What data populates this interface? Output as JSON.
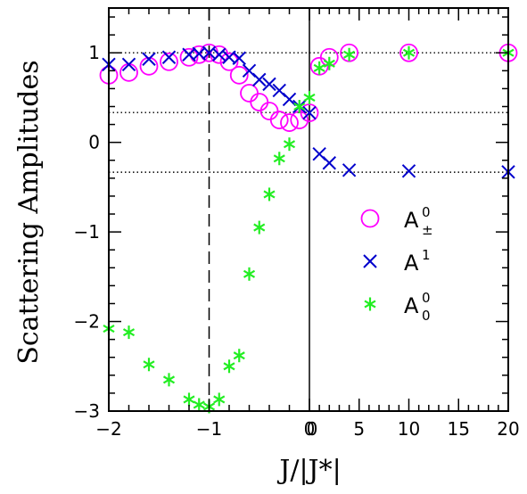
{
  "chart_data": {
    "type": "scatter",
    "ylabel": "Scattering Amplitudes",
    "xlabel": "J/|J*|",
    "ylim": [
      -3,
      1.5
    ],
    "x_ticks_left": [
      {
        "value": -2,
        "label": "−2"
      },
      {
        "value": -1,
        "label": "−1"
      },
      {
        "value": 0,
        "label": "0"
      }
    ],
    "x_ticks_right": [
      {
        "value": 0,
        "label": "0"
      },
      {
        "value": 5,
        "label": "5"
      },
      {
        "value": 10,
        "label": "10"
      },
      {
        "value": 15,
        "label": "15"
      },
      {
        "value": 20,
        "label": "20"
      }
    ],
    "y_ticks": [
      {
        "value": 1,
        "label": "1"
      },
      {
        "value": 0,
        "label": "0"
      },
      {
        "value": -1,
        "label": "−1"
      },
      {
        "value": -2,
        "label": "−2"
      },
      {
        "value": -3,
        "label": "−3"
      }
    ],
    "axis_break": "x = 0: linear scale −2…0 on the left, 0…20 on the right",
    "reference_lines": {
      "horizontal_dotted": [
        1,
        0.333,
        -0.333
      ],
      "vertical_dashed": -1,
      "vertical_solid": 0
    },
    "legend_position": "right",
    "series": [
      {
        "name": "A",
        "sup": "0",
        "sub": "±",
        "marker": "circle",
        "color": "#ff00ff",
        "points": [
          [
            -2.0,
            0.75
          ],
          [
            -1.8,
            0.78
          ],
          [
            -1.6,
            0.85
          ],
          [
            -1.4,
            0.9
          ],
          [
            -1.2,
            0.95
          ],
          [
            -1.1,
            0.98
          ],
          [
            -1.0,
            1.0
          ],
          [
            -0.9,
            0.98
          ],
          [
            -0.8,
            0.9
          ],
          [
            -0.7,
            0.75
          ],
          [
            -0.6,
            0.55
          ],
          [
            -0.5,
            0.45
          ],
          [
            -0.4,
            0.35
          ],
          [
            -0.3,
            0.25
          ],
          [
            -0.2,
            0.22
          ],
          [
            -0.1,
            0.25
          ],
          [
            0.0,
            0.33
          ],
          [
            1.0,
            0.85
          ],
          [
            2.0,
            0.95
          ],
          [
            4.0,
            1.0
          ],
          [
            10.0,
            1.0
          ],
          [
            20.0,
            1.0
          ]
        ]
      },
      {
        "name": "A",
        "sup": "1",
        "sub": "",
        "marker": "cross",
        "color": "#0000cc",
        "points": [
          [
            -2.0,
            0.87
          ],
          [
            -1.8,
            0.87
          ],
          [
            -1.6,
            0.93
          ],
          [
            -1.4,
            0.95
          ],
          [
            -1.2,
            0.98
          ],
          [
            -1.1,
            0.99
          ],
          [
            -1.0,
            1.0
          ],
          [
            -0.9,
            0.98
          ],
          [
            -0.8,
            0.95
          ],
          [
            -0.7,
            0.94
          ],
          [
            -0.6,
            0.8
          ],
          [
            -0.5,
            0.7
          ],
          [
            -0.4,
            0.65
          ],
          [
            -0.3,
            0.58
          ],
          [
            -0.2,
            0.48
          ],
          [
            -0.1,
            0.4
          ],
          [
            0.0,
            0.33
          ],
          [
            1.0,
            -0.13
          ],
          [
            2.0,
            -0.23
          ],
          [
            4.0,
            -0.31
          ],
          [
            10.0,
            -0.32
          ],
          [
            20.0,
            -0.33
          ]
        ]
      },
      {
        "name": "A",
        "sup": "0",
        "sub": "0",
        "marker": "asterisk",
        "color": "#22ee22",
        "points": [
          [
            -2.0,
            -2.08
          ],
          [
            -1.8,
            -2.12
          ],
          [
            -1.6,
            -2.48
          ],
          [
            -1.4,
            -2.65
          ],
          [
            -1.2,
            -2.87
          ],
          [
            -1.1,
            -2.93
          ],
          [
            -1.0,
            -2.95
          ],
          [
            -0.9,
            -2.87
          ],
          [
            -0.8,
            -2.5
          ],
          [
            -0.7,
            -2.38
          ],
          [
            -0.6,
            -1.47
          ],
          [
            -0.5,
            -0.95
          ],
          [
            -0.4,
            -0.58
          ],
          [
            -0.3,
            -0.18
          ],
          [
            -0.2,
            -0.02
          ],
          [
            -0.1,
            0.4
          ],
          [
            0.0,
            0.5
          ],
          [
            1.0,
            0.83
          ],
          [
            2.0,
            0.88
          ],
          [
            4.0,
            0.98
          ],
          [
            10.0,
            1.0
          ],
          [
            20.0,
            1.0
          ]
        ]
      }
    ]
  }
}
